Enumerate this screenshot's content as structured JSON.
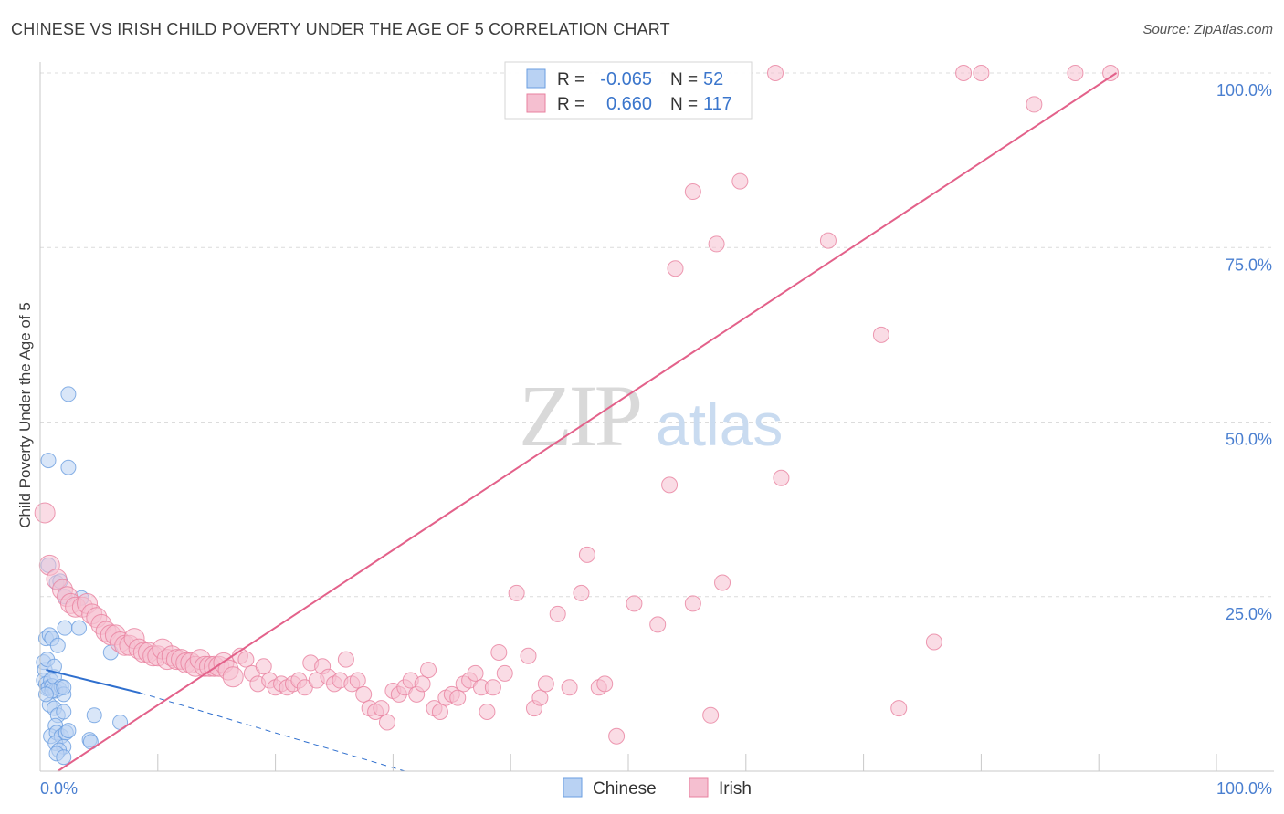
{
  "title": "CHINESE VS IRISH CHILD POVERTY UNDER THE AGE OF 5 CORRELATION CHART",
  "source": "Source: ZipAtlas.com",
  "chart_data": {
    "type": "scatter",
    "title": "CHINESE VS IRISH CHILD POVERTY UNDER THE AGE OF 5 CORRELATION CHART",
    "xlabel": "",
    "ylabel": "Child Poverty Under the Age of 5",
    "xlim": [
      0,
      100
    ],
    "ylim": [
      0,
      100
    ],
    "x_tick_labels": [
      "0.0%",
      "100.0%"
    ],
    "y_tick_values": [
      25,
      50,
      75,
      100
    ],
    "y_tick_labels": [
      "25.0%",
      "50.0%",
      "75.0%",
      "100.0%"
    ],
    "grid": true,
    "watermark": {
      "zip": "ZIP",
      "atlas": "atlas"
    },
    "legend_box": [
      {
        "r_label": "R =",
        "r_value": "-0.065",
        "n_label": "N =",
        "n_value": "52"
      },
      {
        "r_label": "R =",
        "r_value": "0.660",
        "n_label": "N =",
        "n_value": "117"
      }
    ],
    "series": [
      {
        "name": "Chinese",
        "color": "#6a9ee0",
        "fill": "#b9d2f3",
        "line_color": "#2f6fce",
        "trend": {
          "solid": [
            [
              0.5,
              14.5
            ],
            [
              8.5,
              11.2
            ]
          ],
          "dashed": [
            [
              8.5,
              11.2
            ],
            [
              31,
              0
            ]
          ]
        },
        "points": [
          [
            0.3,
            15.6
          ],
          [
            0.4,
            14.5
          ],
          [
            0.3,
            13.0
          ],
          [
            0.5,
            12.5
          ],
          [
            0.6,
            11.8
          ],
          [
            0.7,
            12.0
          ],
          [
            0.9,
            13.0
          ],
          [
            1.0,
            12.2
          ],
          [
            1.2,
            13.5
          ],
          [
            1.3,
            11.5
          ],
          [
            1.6,
            11.8
          ],
          [
            1.8,
            12.1
          ],
          [
            2.0,
            11.0
          ],
          [
            0.5,
            19.0
          ],
          [
            0.8,
            19.5
          ],
          [
            1.0,
            19.0
          ],
          [
            1.5,
            18.0
          ],
          [
            0.6,
            16.0
          ],
          [
            0.7,
            29.5
          ],
          [
            1.4,
            27.0
          ],
          [
            1.7,
            27.2
          ],
          [
            2.1,
            25.0
          ],
          [
            3.5,
            24.8
          ],
          [
            0.7,
            44.5
          ],
          [
            2.4,
            43.5
          ],
          [
            2.4,
            54.0
          ],
          [
            2.1,
            20.5
          ],
          [
            3.3,
            20.5
          ],
          [
            6.0,
            17.0
          ],
          [
            0.8,
            9.5
          ],
          [
            1.2,
            9.0
          ],
          [
            1.5,
            8.0
          ],
          [
            2.0,
            8.5
          ],
          [
            1.3,
            6.5
          ],
          [
            0.9,
            5.0
          ],
          [
            1.4,
            5.5
          ],
          [
            1.8,
            5.0
          ],
          [
            2.2,
            5.5
          ],
          [
            2.4,
            5.8
          ],
          [
            1.3,
            4.0
          ],
          [
            2.0,
            3.5
          ],
          [
            1.6,
            3.0
          ],
          [
            1.4,
            2.5
          ],
          [
            2.0,
            2.0
          ],
          [
            4.2,
            4.5
          ],
          [
            4.3,
            4.2
          ],
          [
            4.6,
            8.0
          ],
          [
            6.8,
            7.0
          ],
          [
            1.0,
            11.5
          ],
          [
            2.0,
            12.0
          ],
          [
            0.5,
            11.0
          ],
          [
            1.2,
            15.0
          ]
        ]
      },
      {
        "name": "Irish",
        "color": "#e8819f",
        "fill": "#f5bfd0",
        "line_color": "#e3618a",
        "trend": {
          "solid": [
            [
              1.5,
              0.0
            ],
            [
              91.5,
              100.0
            ]
          ]
        },
        "points": [
          [
            0.4,
            37.0
          ],
          [
            0.8,
            29.5
          ],
          [
            1.4,
            27.5
          ],
          [
            1.9,
            26.0
          ],
          [
            2.3,
            25.0
          ],
          [
            2.6,
            24.0
          ],
          [
            3.0,
            23.5
          ],
          [
            3.6,
            23.5
          ],
          [
            4.0,
            24.0
          ],
          [
            4.4,
            22.5
          ],
          [
            4.8,
            22.0
          ],
          [
            5.2,
            21.0
          ],
          [
            5.6,
            20.0
          ],
          [
            6.0,
            19.5
          ],
          [
            6.4,
            19.5
          ],
          [
            6.8,
            18.5
          ],
          [
            7.2,
            18.0
          ],
          [
            7.6,
            18.0
          ],
          [
            8.0,
            19.0
          ],
          [
            8.4,
            17.5
          ],
          [
            8.8,
            17.0
          ],
          [
            9.2,
            17.0
          ],
          [
            9.6,
            16.5
          ],
          [
            10.0,
            16.5
          ],
          [
            10.4,
            17.5
          ],
          [
            10.8,
            16.0
          ],
          [
            11.2,
            16.5
          ],
          [
            11.6,
            16.0
          ],
          [
            12.0,
            16.0
          ],
          [
            12.4,
            15.5
          ],
          [
            12.8,
            15.5
          ],
          [
            13.2,
            15.0
          ],
          [
            13.6,
            16.0
          ],
          [
            14.0,
            15.0
          ],
          [
            14.4,
            15.0
          ],
          [
            14.8,
            15.0
          ],
          [
            15.2,
            15.0
          ],
          [
            15.6,
            15.5
          ],
          [
            16.0,
            14.5
          ],
          [
            16.4,
            13.5
          ],
          [
            17.0,
            16.5
          ],
          [
            17.5,
            16.0
          ],
          [
            18.0,
            14.0
          ],
          [
            18.5,
            12.5
          ],
          [
            19.0,
            15.0
          ],
          [
            19.5,
            13.0
          ],
          [
            20.0,
            12.0
          ],
          [
            20.5,
            12.5
          ],
          [
            21.0,
            12.0
          ],
          [
            21.5,
            12.5
          ],
          [
            22.0,
            13.0
          ],
          [
            22.5,
            12.0
          ],
          [
            23.0,
            15.5
          ],
          [
            23.5,
            13.0
          ],
          [
            24.0,
            15.0
          ],
          [
            24.5,
            13.5
          ],
          [
            25.0,
            12.5
          ],
          [
            25.5,
            13.0
          ],
          [
            26.0,
            16.0
          ],
          [
            26.5,
            12.5
          ],
          [
            27.0,
            13.0
          ],
          [
            27.5,
            11.0
          ],
          [
            28.0,
            9.0
          ],
          [
            28.5,
            8.5
          ],
          [
            29.0,
            9.0
          ],
          [
            29.5,
            7.0
          ],
          [
            30.0,
            11.5
          ],
          [
            30.5,
            11.0
          ],
          [
            31.0,
            12.0
          ],
          [
            31.5,
            13.0
          ],
          [
            32.0,
            11.0
          ],
          [
            32.5,
            12.5
          ],
          [
            33.0,
            14.5
          ],
          [
            33.5,
            9.0
          ],
          [
            34.0,
            8.5
          ],
          [
            34.5,
            10.5
          ],
          [
            35.0,
            11.0
          ],
          [
            35.5,
            10.5
          ],
          [
            36.0,
            12.5
          ],
          [
            36.5,
            13.0
          ],
          [
            37.0,
            14.0
          ],
          [
            37.5,
            12.0
          ],
          [
            38.0,
            8.5
          ],
          [
            38.5,
            12.0
          ],
          [
            39.0,
            17.0
          ],
          [
            39.5,
            14.0
          ],
          [
            40.5,
            25.5
          ],
          [
            41.5,
            16.5
          ],
          [
            42.0,
            9.0
          ],
          [
            42.5,
            10.5
          ],
          [
            43.0,
            12.5
          ],
          [
            44.0,
            22.5
          ],
          [
            45.0,
            12.0
          ],
          [
            46.0,
            25.5
          ],
          [
            46.5,
            31.0
          ],
          [
            47.5,
            12.0
          ],
          [
            48.0,
            12.5
          ],
          [
            49.0,
            5.0
          ],
          [
            50.5,
            24.0
          ],
          [
            52.5,
            21.0
          ],
          [
            53.5,
            41.0
          ],
          [
            55.5,
            24.0
          ],
          [
            58.0,
            27.0
          ],
          [
            57.0,
            8.0
          ],
          [
            63.0,
            42.0
          ],
          [
            71.5,
            62.5
          ],
          [
            73.0,
            9.0
          ],
          [
            76.0,
            18.5
          ],
          [
            54.0,
            72.0
          ],
          [
            55.5,
            83.0
          ],
          [
            57.5,
            75.5
          ],
          [
            59.5,
            84.5
          ],
          [
            67.0,
            76.0
          ],
          [
            62.5,
            100.0
          ],
          [
            78.5,
            100.0
          ],
          [
            80.0,
            100.0
          ],
          [
            84.5,
            95.5
          ],
          [
            88.0,
            100.0
          ],
          [
            91.0,
            100.0
          ]
        ]
      }
    ]
  },
  "legend": {
    "items": [
      {
        "label": "Chinese",
        "color": "#6a9ee0",
        "fill": "#b9d2f3"
      },
      {
        "label": "Irish",
        "color": "#e8819f",
        "fill": "#f5bfd0"
      }
    ]
  }
}
